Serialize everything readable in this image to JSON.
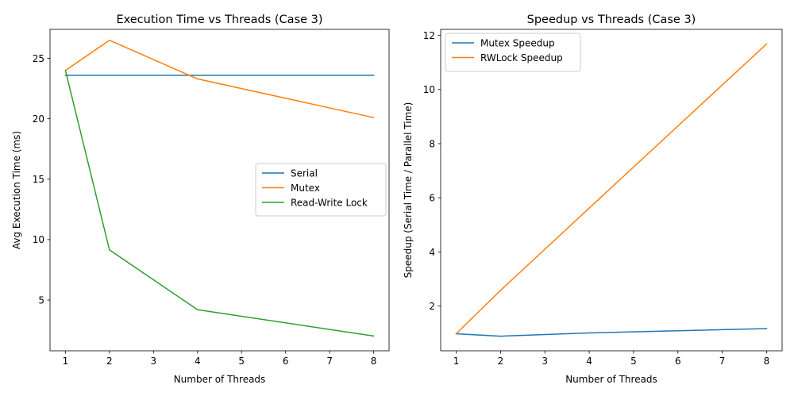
{
  "chart_data": [
    {
      "type": "line",
      "title": "Execution Time vs Threads (Case 3)",
      "xlabel": "Number of Threads",
      "ylabel": "Avg Execution Time (ms)",
      "x": [
        1,
        2,
        4,
        8
      ],
      "xlim": [
        0.65,
        8.35
      ],
      "ylim": [
        0.8,
        27.4
      ],
      "xticks": [
        1,
        2,
        3,
        4,
        5,
        6,
        7,
        8
      ],
      "yticks": [
        5,
        10,
        15,
        20,
        25
      ],
      "grid": false,
      "legend_position": "center-right",
      "series": [
        {
          "name": "Serial",
          "color": "#1f77b4",
          "values": [
            23.6,
            23.6,
            23.6,
            23.6
          ]
        },
        {
          "name": "Mutex",
          "color": "#ff7f0e",
          "values": [
            24.0,
            26.5,
            23.3,
            20.1
          ]
        },
        {
          "name": "Read-Write Lock",
          "color": "#2ca02c",
          "values": [
            24.0,
            9.15,
            4.2,
            2.02
          ]
        }
      ]
    },
    {
      "type": "line",
      "title": "Speedup vs Threads (Case 3)",
      "xlabel": "Number of Threads",
      "ylabel": "Speedup (Serial Time / Parallel Time)",
      "x": [
        1,
        2,
        4,
        8
      ],
      "xlim": [
        0.65,
        8.35
      ],
      "ylim": [
        0.35,
        12.22
      ],
      "xticks": [
        1,
        2,
        3,
        4,
        5,
        6,
        7,
        8
      ],
      "yticks": [
        2,
        4,
        6,
        8,
        10,
        12
      ],
      "grid": false,
      "legend_position": "top-left",
      "series": [
        {
          "name": "Mutex Speedup",
          "color": "#1f77b4",
          "values": [
            0.98,
            0.89,
            1.01,
            1.17
          ]
        },
        {
          "name": "RWLock Speedup",
          "color": "#ff7f0e",
          "values": [
            0.98,
            2.58,
            5.62,
            11.68
          ]
        }
      ]
    }
  ]
}
